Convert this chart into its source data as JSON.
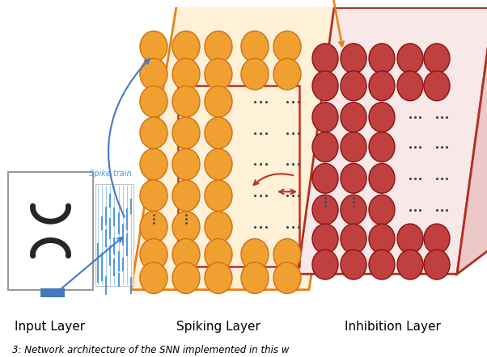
{
  "bg_color": "#ffffff",
  "spiking_panel_color": "#E88010",
  "spiking_panel_edge": "#E88010",
  "spiking_neuron_color": "#F0A030",
  "spiking_neuron_edge": "#D07010",
  "spiking_inner_rect_color": "#C03020",
  "inhibition_panel_color": "#B03020",
  "inhibition_panel_edge": "#B03020",
  "inhibition_neuron_color": "#C04040",
  "inhibition_neuron_edge": "#8B1010",
  "input_border_color": "#999999",
  "input_bg": "#f8f8f8",
  "spike_color": "#5599DD",
  "spike_label_color": "#5599DD",
  "arrow_blue": "#4477CC",
  "arrow_orange": "#E88010",
  "arrow_red": "#C03020",
  "dot_color": "#444444",
  "label_fontsize": 11,
  "caption_fontsize": 8.5,
  "label_input": "Input Layer",
  "label_spiking": "Spiking Layer",
  "label_inhibition": "Inhibition Layer",
  "caption": "3: Network architecture of the SNN implemented in this w"
}
